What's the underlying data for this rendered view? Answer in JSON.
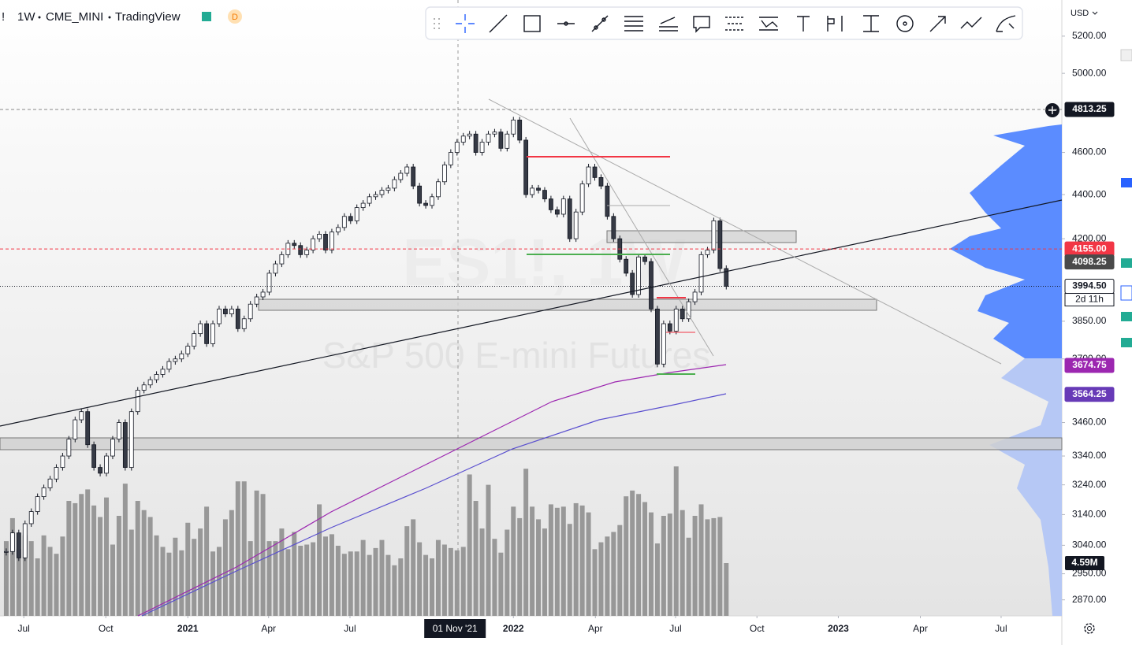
{
  "header": {
    "symbol": "!",
    "interval": "1W",
    "exchange": "CME_MINI",
    "source": "TradingView",
    "badge": "D"
  },
  "watermark": {
    "symbol": "ES1!, 1W",
    "name": "S&P 500 E-mini Futures"
  },
  "axis": {
    "currency": "USD"
  },
  "chart_data": {
    "type": "candlestick",
    "log": true,
    "xlim": [
      -1,
      168.6
    ],
    "ylim": [
      2822,
      5402
    ],
    "values": [
      3020,
      3080,
      3000,
      3110,
      3150,
      3200,
      3230,
      3260,
      3300,
      3340,
      3400,
      3470,
      3500,
      3380,
      3300,
      3280,
      3340,
      3400,
      3460,
      3300,
      3500,
      3580,
      3600,
      3620,
      3640,
      3660,
      3690,
      3700,
      3720,
      3750,
      3800,
      3840,
      3760,
      3840,
      3900,
      3880,
      3900,
      3820,
      3860,
      3920,
      3950,
      3970,
      4050,
      4090,
      4130,
      4180,
      4170,
      4130,
      4150,
      4200,
      4220,
      4150,
      4230,
      4250,
      4300,
      4280,
      4340,
      4360,
      4390,
      4400,
      4420,
      4430,
      4470,
      4500,
      4530,
      4440,
      4360,
      4350,
      4390,
      4460,
      4540,
      4600,
      4650,
      4680,
      4690,
      4600,
      4650,
      4690,
      4700,
      4620,
      4690,
      4760,
      4660,
      4400,
      4430,
      4420,
      4380,
      4330,
      4310,
      4380,
      4200,
      4320,
      4450,
      4530,
      4480,
      4440,
      4300,
      4200,
      4110,
      4050,
      3960,
      4120,
      4100,
      3900,
      3680,
      3840,
      3810,
      3900,
      3860,
      3930,
      3970,
      4130,
      4150,
      4280,
      4070,
      3994.5
    ],
    "volumes": [
      6.5,
      8.5,
      5.8,
      7,
      6.5,
      5,
      7,
      6,
      5.4,
      6.9,
      10,
      9.8,
      10.6,
      11,
      9.6,
      8.6,
      10.3,
      6.2,
      8.7,
      11.5,
      7.5,
      10,
      9.2,
      8.6,
      7,
      6,
      5.5,
      6.8,
      5.7,
      8.1,
      6.7,
      7.6,
      9.5,
      5.6,
      6,
      8.4,
      9.2,
      11.7,
      11.7,
      6.5,
      10.9,
      10.6,
      6.5,
      6.5,
      7.6,
      5.8,
      7.3,
      6.1,
      6.2,
      6.4,
      9.7,
      6.9,
      7.1,
      6.1,
      5.4,
      5.6,
      5.6,
      6.6,
      5.3,
      5.9,
      6.6,
      5.3,
      4.4,
      5,
      7.8,
      8.4,
      6.4,
      5.3,
      5,
      6.6,
      6.2,
      5.9,
      5.7,
      6,
      12.3,
      10,
      7.6,
      11.4,
      6.7,
      5.5,
      7.5,
      9.5,
      8.5,
      12.8,
      9.5,
      8.4,
      7.6,
      9.7,
      9.4,
      9.5,
      8,
      9.8,
      9.6,
      9,
      5.8,
      6.4,
      6.9,
      7.3,
      7.9,
      10.4,
      10.9,
      10.6,
      9.9,
      9,
      6.3,
      8.7,
      8.9,
      13,
      9.2,
      6.8,
      8.7,
      9.7,
      8.4,
      8.5,
      8.6,
      4.59
    ],
    "volume_badge": {
      "value": 4.59,
      "label": "4.59M"
    },
    "up_color": "#ffffff",
    "down_color": "#363a45",
    "volume_color": "#8a8a8a",
    "yticks": [
      {
        "value": 5200,
        "label": "5200.00"
      },
      {
        "value": 5000,
        "label": "5000.00"
      },
      {
        "value": 4600,
        "label": "4600.00"
      },
      {
        "value": 4400,
        "label": "4400.00"
      },
      {
        "value": 4200,
        "label": "4200.00"
      },
      {
        "value": 3850,
        "label": "3850.00"
      },
      {
        "value": 3700,
        "label": "3700.00"
      },
      {
        "value": 3460,
        "label": "3460.00"
      },
      {
        "value": 3340,
        "label": "3340.00"
      },
      {
        "value": 3240,
        "label": "3240.00"
      },
      {
        "value": 3140,
        "label": "3140.00"
      },
      {
        "value": 3040,
        "label": "3040.00"
      },
      {
        "value": 2950,
        "label": "2950.00"
      },
      {
        "value": 2870,
        "label": "2870.00"
      }
    ],
    "xticks": [
      {
        "value": 2.8,
        "label": "Jul"
      },
      {
        "value": 15.9,
        "label": "Oct"
      },
      {
        "value": 29,
        "label": "2021"
      },
      {
        "value": 41.9,
        "label": "Apr"
      },
      {
        "value": 54.9,
        "label": "Jul"
      },
      {
        "value": 81,
        "label": "2022"
      },
      {
        "value": 94.1,
        "label": "Apr"
      },
      {
        "value": 106.9,
        "label": "Jul"
      },
      {
        "value": 119.9,
        "label": "Oct"
      },
      {
        "value": 132.9,
        "label": "2023"
      },
      {
        "value": 146,
        "label": "Apr"
      },
      {
        "value": 158.9,
        "label": "Jul"
      }
    ],
    "crosshair": {
      "x": 71.8,
      "label": "01 Nov '21"
    },
    "price_badges": [
      {
        "value": 4813.25,
        "label": "4813.25",
        "color": "#131722",
        "line": "dashed",
        "line_color": "#888888"
      },
      {
        "value": 4155,
        "label": "4155.00",
        "color": "#f23645",
        "line": "dashed",
        "line_color": "#f23645"
      },
      {
        "value": 4098.25,
        "label": "4098.25",
        "color": "#4a4a4a"
      },
      {
        "value": 3994.5,
        "label": "3994.50",
        "color": "#ffffff",
        "countdown": "2d 11h",
        "line": "dotted",
        "line_color": "#131722"
      },
      {
        "value": 3674.75,
        "label": "3674.75",
        "color": "#9c27b0"
      },
      {
        "value": 3564.25,
        "label": "3564.25",
        "color": "#673ab7"
      }
    ]
  }
}
